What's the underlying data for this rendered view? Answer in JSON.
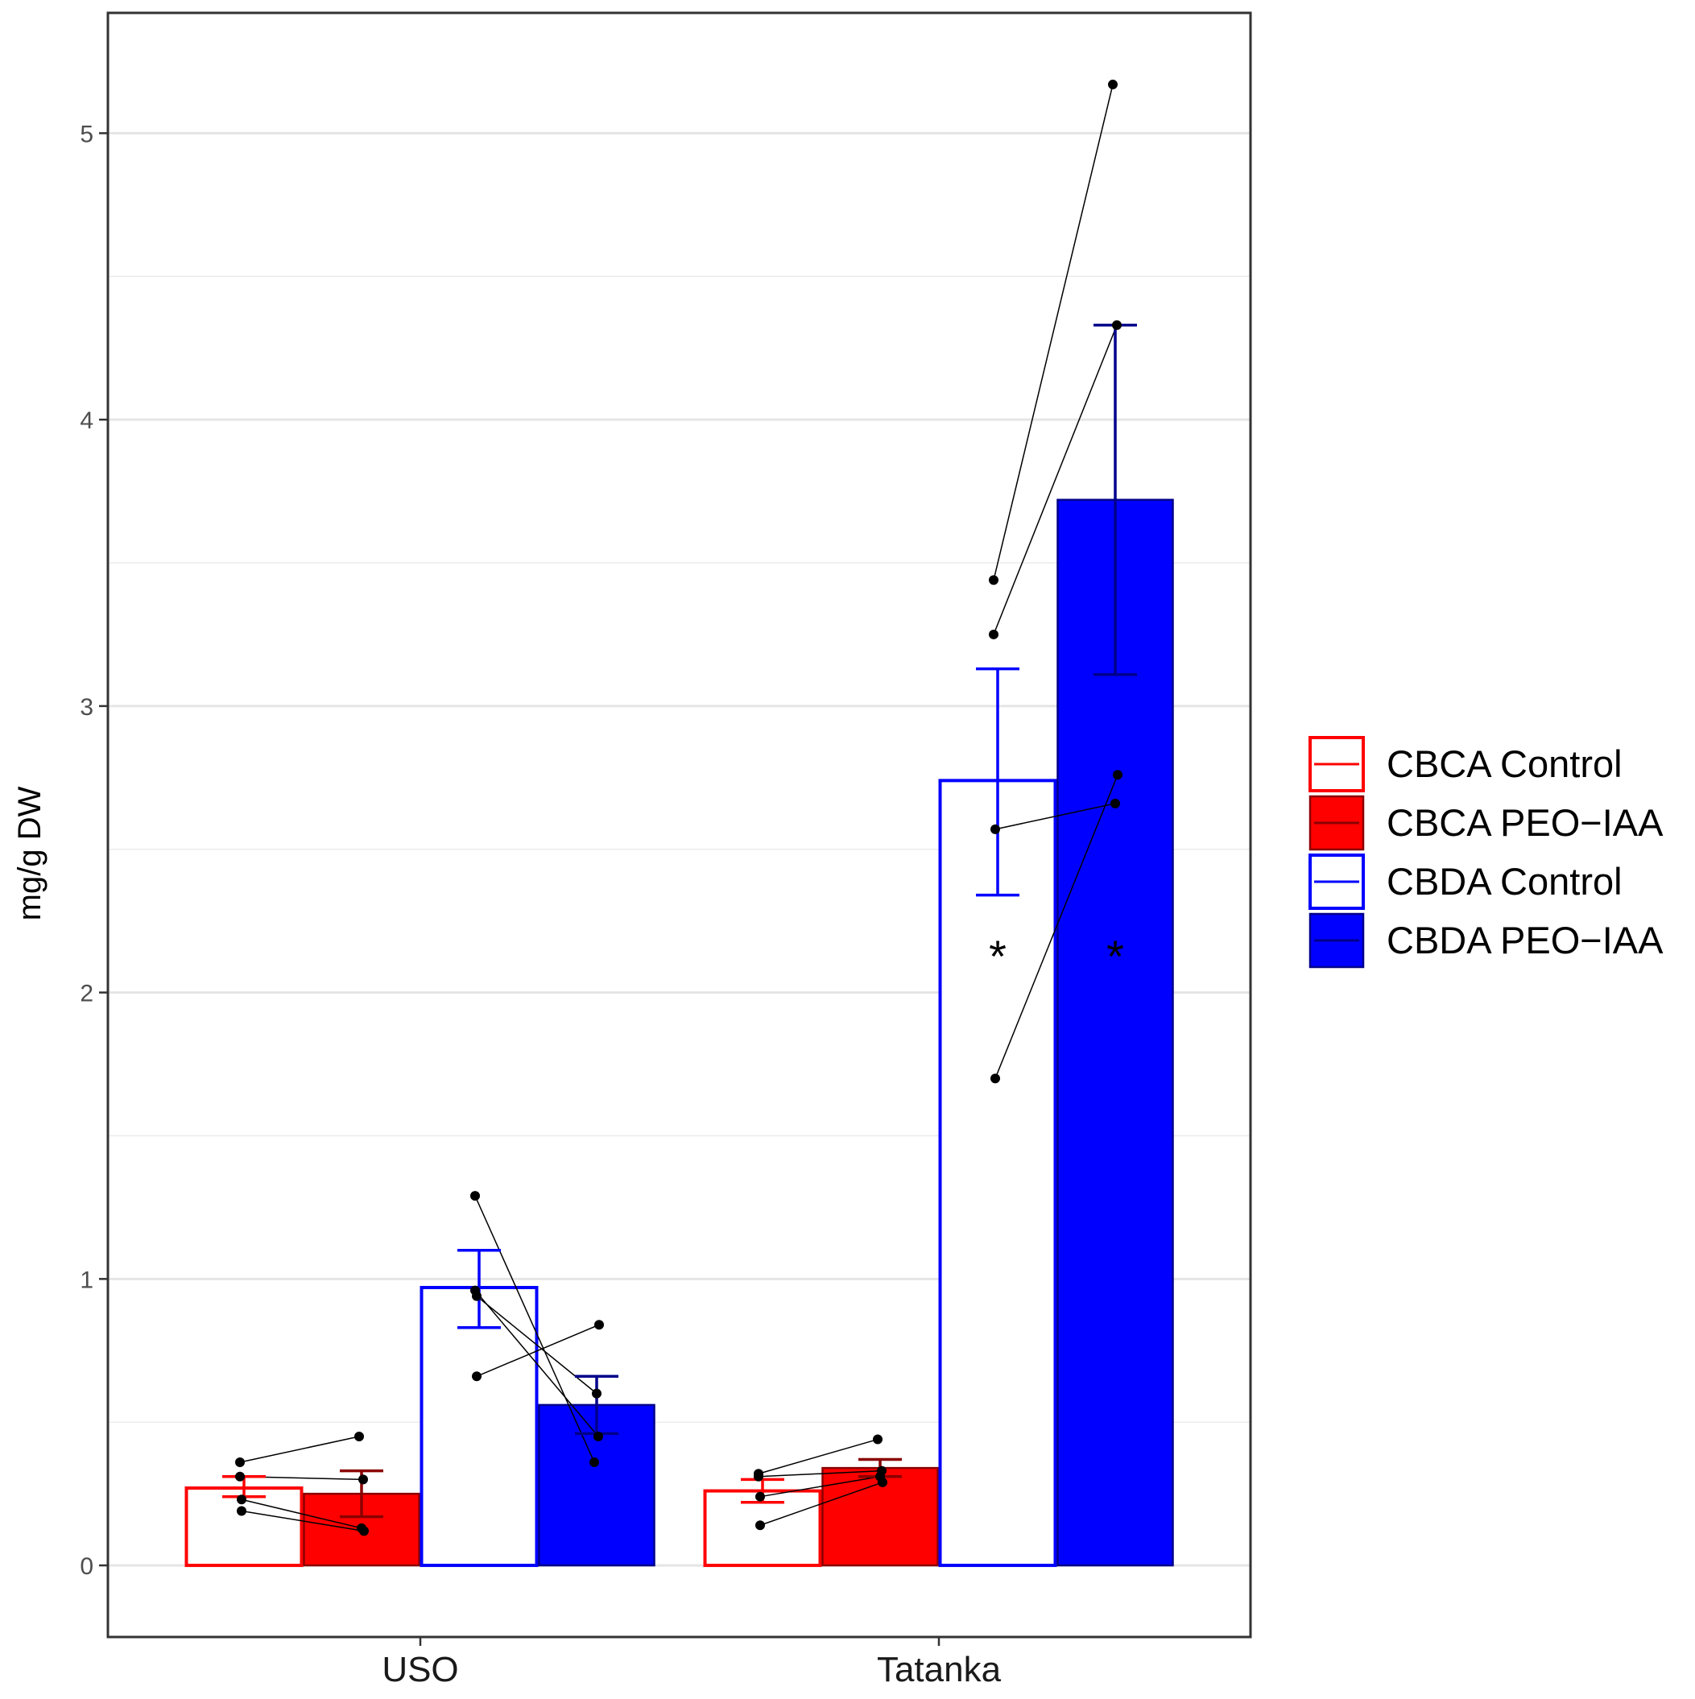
{
  "chart_data": {
    "type": "bar",
    "ylabel": "mg/g DW",
    "xlabel": "",
    "ylim": [
      -0.25,
      5.42
    ],
    "y_ticks": [
      0,
      1,
      2,
      3,
      4,
      5
    ],
    "y_tick_labels": [
      "0",
      "1",
      "2",
      "3",
      "4",
      "5"
    ],
    "grid": true,
    "legend_position": "right",
    "categories": [
      "USO",
      "Tatanka"
    ],
    "series": [
      {
        "name": "CBCA Control",
        "style": "outline",
        "color": "#ff0000",
        "values": [
          0.27,
          0.26
        ],
        "error": [
          [
            0.24,
            0.31
          ],
          [
            0.22,
            0.3
          ]
        ],
        "points": [
          [
            0.36,
            0.31,
            0.23,
            0.19
          ],
          [
            0.32,
            0.31,
            0.24,
            0.14
          ]
        ],
        "significance": [
          "",
          ""
        ]
      },
      {
        "name": "CBCA PEO−IAA",
        "style": "filled",
        "color": "#ff0000",
        "edge_color": "#8b0000",
        "values": [
          0.25,
          0.34
        ],
        "error": [
          [
            0.17,
            0.33
          ],
          [
            0.31,
            0.37
          ]
        ],
        "points": [
          [
            0.45,
            0.3,
            0.13,
            0.12
          ],
          [
            0.44,
            0.33,
            0.31,
            0.29
          ]
        ],
        "significance": [
          "",
          ""
        ]
      },
      {
        "name": "CBDA Control",
        "style": "outline",
        "color": "#0000ff",
        "values": [
          0.97,
          2.74
        ],
        "error": [
          [
            0.83,
            1.1
          ],
          [
            2.34,
            3.13
          ]
        ],
        "points": [
          [
            1.29,
            0.96,
            0.94,
            0.66
          ],
          [
            3.44,
            3.25,
            2.57,
            1.7
          ]
        ],
        "significance": [
          "",
          "*"
        ]
      },
      {
        "name": "CBDA PEO−IAA",
        "style": "filled",
        "color": "#0000ff",
        "edge_color": "#00008b",
        "values": [
          0.56,
          3.72
        ],
        "error": [
          [
            0.46,
            0.66
          ],
          [
            3.11,
            4.33
          ]
        ],
        "points": [
          [
            0.36,
            0.45,
            0.6,
            0.84
          ],
          [
            5.17,
            4.33,
            2.66,
            2.76
          ]
        ],
        "significance": [
          "",
          "*"
        ]
      }
    ]
  }
}
